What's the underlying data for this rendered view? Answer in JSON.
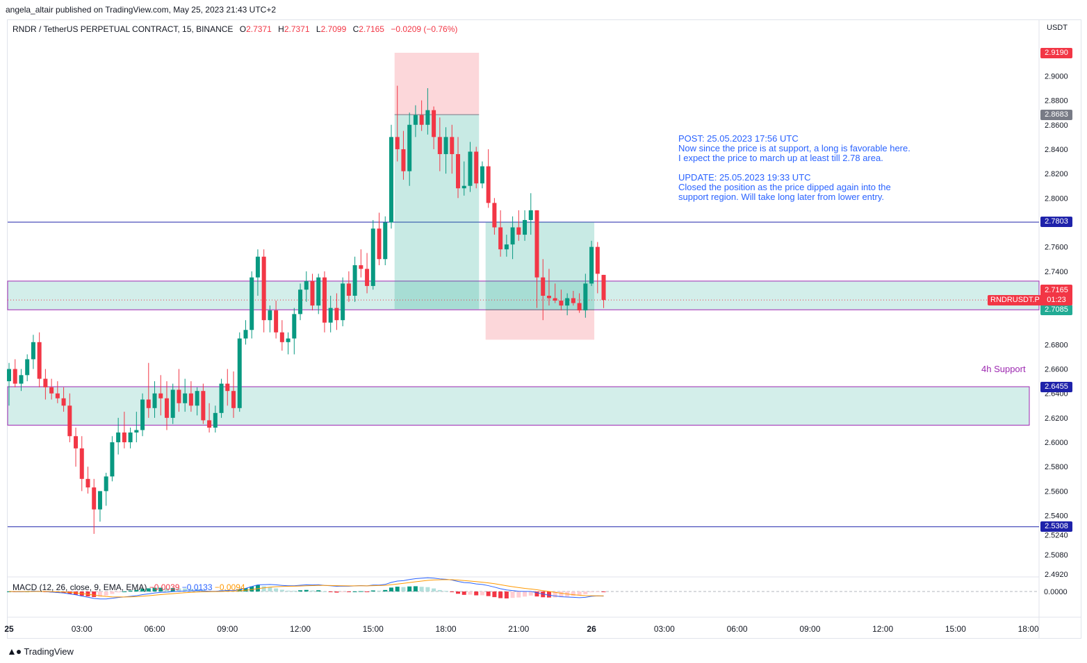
{
  "header": {
    "text": "angela_altair published on TradingView.com, May 25, 2023 21:43 UTC+2"
  },
  "legend": {
    "symbol": "RNDR / TetherUS PERPETUAL CONTRACT, 15, BINANCE",
    "o_label": "O",
    "o": "2.7371",
    "h_label": "H",
    "h": "2.7371",
    "l_label": "L",
    "l": "2.7099",
    "c_label": "C",
    "c": "2.7165",
    "change": "−0.0209 (−0.76%)"
  },
  "macd_legend": {
    "label": "MACD (12, 26, close, 9, EMA, EMA)",
    "hist": "−0.0039",
    "macd": "−0.0133",
    "signal": "−0.0094"
  },
  "currency": "USDT",
  "notes": {
    "text": "POST: 25.05.2023 17:56 UTC\nNow since the price is at support, a long is favorable here.\nI expect the price to march up at least till 2.78 area.\n\nUPDATE: 25.05.2023 19:33 UTC\nClosed the position as the price dipped again into the\nsupport region. Will take long later from lower entry."
  },
  "support_label": "4h Support",
  "symbol_tag": "RNDRUSDT.P",
  "current_price": "2.7165",
  "countdown": "01:23",
  "price_tags": [
    {
      "value": 2.919,
      "label": "2.9190",
      "color": "#f23645"
    },
    {
      "value": 2.8683,
      "label": "2.8683",
      "color": "#787b86"
    },
    {
      "value": 2.7803,
      "label": "2.7803",
      "color": "#1e22aa"
    },
    {
      "value": 2.7085,
      "label": "2.7085",
      "color": "#22ab94"
    },
    {
      "value": 2.6455,
      "label": "2.6455",
      "color": "#1e22aa"
    },
    {
      "value": 2.5308,
      "label": "2.5308",
      "color": "#1e22aa"
    }
  ],
  "footer": {
    "brand": "TradingView"
  },
  "chart_data": {
    "type": "candlestick",
    "ylim": [
      2.492,
      2.919
    ],
    "y_ticks": [
      "2.9000",
      "2.8800",
      "2.8600",
      "2.8400",
      "2.8200",
      "2.8000",
      "2.7600",
      "2.7400",
      "2.7200",
      "2.6800",
      "2.6600",
      "2.6400",
      "2.6200",
      "2.6000",
      "2.5800",
      "2.5600",
      "2.5400",
      "2.5240",
      "2.5080",
      "2.4920"
    ],
    "y_tick_values": [
      2.9,
      2.88,
      2.86,
      2.84,
      2.82,
      2.8,
      2.76,
      2.74,
      2.72,
      2.68,
      2.66,
      2.64,
      2.62,
      2.6,
      2.58,
      2.56,
      2.54,
      2.524,
      2.508,
      2.492
    ],
    "x_ticks": [
      "25",
      "03:00",
      "06:00",
      "09:00",
      "12:00",
      "15:00",
      "18:00",
      "21:00",
      "26",
      "03:00",
      "06:00",
      "09:00",
      "12:00",
      "15:00",
      "18:00"
    ],
    "x_tick_index": [
      0,
      12,
      24,
      36,
      48,
      60,
      72,
      84,
      96,
      108,
      120,
      132,
      144,
      156,
      168
    ],
    "horizontal_lines": [
      2.7803,
      2.5308
    ],
    "zones": [
      {
        "from": 2.7085,
        "to": 2.732
      },
      {
        "from": 2.614,
        "to": 2.6455
      }
    ],
    "positions": [
      {
        "type": "short",
        "start_index": 64,
        "end_index": 77,
        "entry": 2.8683,
        "stop": 2.919,
        "target": 2.709
      },
      {
        "type": "long",
        "start_index": 79,
        "end_index": 96,
        "entry": 2.7085,
        "stop": 2.684,
        "target": 2.7803
      }
    ],
    "candles": [
      [
        2.65,
        2.665,
        2.63,
        2.66
      ],
      [
        2.66,
        2.668,
        2.645,
        2.648
      ],
      [
        2.648,
        2.66,
        2.642,
        2.655
      ],
      [
        2.655,
        2.672,
        2.65,
        2.668
      ],
      [
        2.668,
        2.688,
        2.66,
        2.682
      ],
      [
        2.682,
        2.69,
        2.645,
        2.652
      ],
      [
        2.652,
        2.66,
        2.635,
        2.645
      ],
      [
        2.645,
        2.652,
        2.635,
        2.64
      ],
      [
        2.64,
        2.65,
        2.632,
        2.636
      ],
      [
        2.636,
        2.645,
        2.625,
        2.63
      ],
      [
        2.63,
        2.64,
        2.6,
        2.605
      ],
      [
        2.605,
        2.612,
        2.58,
        2.595
      ],
      [
        2.595,
        2.605,
        2.56,
        2.57
      ],
      [
        2.57,
        2.58,
        2.558,
        2.563
      ],
      [
        2.563,
        2.57,
        2.525,
        2.545
      ],
      [
        2.545,
        2.56,
        2.535,
        2.56
      ],
      [
        2.56,
        2.575,
        2.548,
        2.572
      ],
      [
        2.572,
        2.605,
        2.568,
        2.6
      ],
      [
        2.6,
        2.62,
        2.59,
        2.608
      ],
      [
        2.608,
        2.625,
        2.595,
        2.6
      ],
      [
        2.6,
        2.612,
        2.595,
        2.608
      ],
      [
        2.608,
        2.625,
        2.6,
        2.61
      ],
      [
        2.61,
        2.64,
        2.605,
        2.635
      ],
      [
        2.635,
        2.665,
        2.62,
        2.628
      ],
      [
        2.628,
        2.65,
        2.62,
        2.64
      ],
      [
        2.64,
        2.655,
        2.622,
        2.636
      ],
      [
        2.636,
        2.65,
        2.61,
        2.62
      ],
      [
        2.62,
        2.648,
        2.615,
        2.643
      ],
      [
        2.643,
        2.66,
        2.625,
        2.632
      ],
      [
        2.632,
        2.652,
        2.625,
        2.64
      ],
      [
        2.64,
        2.65,
        2.625,
        2.63
      ],
      [
        2.63,
        2.645,
        2.622,
        2.642
      ],
      [
        2.642,
        2.648,
        2.615,
        2.618
      ],
      [
        2.618,
        2.632,
        2.608,
        2.612
      ],
      [
        2.612,
        2.63,
        2.608,
        2.624
      ],
      [
        2.624,
        2.652,
        2.62,
        2.648
      ],
      [
        2.648,
        2.66,
        2.63,
        2.642
      ],
      [
        2.642,
        2.658,
        2.62,
        2.628
      ],
      [
        2.628,
        2.69,
        2.625,
        2.685
      ],
      [
        2.685,
        2.7,
        2.68,
        2.692
      ],
      [
        2.692,
        2.74,
        2.685,
        2.735
      ],
      [
        2.735,
        2.758,
        2.72,
        2.752
      ],
      [
        2.752,
        2.758,
        2.69,
        2.7
      ],
      [
        2.7,
        2.712,
        2.69,
        2.708
      ],
      [
        2.708,
        2.716,
        2.685,
        2.69
      ],
      [
        2.69,
        2.7,
        2.675,
        2.682
      ],
      [
        2.682,
        2.69,
        2.672,
        2.685
      ],
      [
        2.685,
        2.71,
        2.672,
        2.705
      ],
      [
        2.705,
        2.73,
        2.7,
        2.725
      ],
      [
        2.725,
        2.74,
        2.715,
        2.732
      ],
      [
        2.732,
        2.738,
        2.708,
        2.712
      ],
      [
        2.712,
        2.738,
        2.705,
        2.735
      ],
      [
        2.735,
        2.74,
        2.69,
        2.698
      ],
      [
        2.698,
        2.72,
        2.69,
        2.71
      ],
      [
        2.71,
        2.722,
        2.692,
        2.7
      ],
      [
        2.7,
        2.735,
        2.695,
        2.73
      ],
      [
        2.73,
        2.74,
        2.715,
        2.72
      ],
      [
        2.72,
        2.752,
        2.715,
        2.745
      ],
      [
        2.745,
        2.758,
        2.735,
        2.742
      ],
      [
        2.742,
        2.755,
        2.722,
        2.728
      ],
      [
        2.728,
        2.782,
        2.725,
        2.775
      ],
      [
        2.775,
        2.788,
        2.745,
        2.75
      ],
      [
        2.75,
        2.785,
        2.745,
        2.78
      ],
      [
        2.78,
        2.86,
        2.775,
        2.85
      ],
      [
        2.85,
        2.892,
        2.83,
        2.84
      ],
      [
        2.84,
        2.855,
        2.815,
        2.822
      ],
      [
        2.822,
        2.87,
        2.81,
        2.86
      ],
      [
        2.86,
        2.876,
        2.85,
        2.868
      ],
      [
        2.868,
        2.88,
        2.855,
        2.86
      ],
      [
        2.86,
        2.89,
        2.852,
        2.872
      ],
      [
        2.872,
        2.875,
        2.84,
        2.85
      ],
      [
        2.85,
        2.866,
        2.822,
        2.836
      ],
      [
        2.836,
        2.858,
        2.82,
        2.85
      ],
      [
        2.85,
        2.86,
        2.82,
        2.836
      ],
      [
        2.836,
        2.85,
        2.8,
        2.808
      ],
      [
        2.808,
        2.83,
        2.802,
        2.81
      ],
      [
        2.81,
        2.846,
        2.805,
        2.838
      ],
      [
        2.838,
        2.842,
        2.808,
        2.812
      ],
      [
        2.812,
        2.83,
        2.808,
        2.826
      ],
      [
        2.826,
        2.84,
        2.792,
        2.796
      ],
      [
        2.796,
        2.8,
        2.77,
        2.776
      ],
      [
        2.776,
        2.79,
        2.752,
        2.758
      ],
      [
        2.758,
        2.77,
        2.752,
        2.762
      ],
      [
        2.762,
        2.785,
        2.75,
        2.776
      ],
      [
        2.776,
        2.79,
        2.765,
        2.77
      ],
      [
        2.77,
        2.79,
        2.765,
        2.782
      ],
      [
        2.782,
        2.804,
        2.77,
        2.79
      ],
      [
        2.79,
        2.79,
        2.71,
        2.735
      ],
      [
        2.735,
        2.75,
        2.7,
        2.72
      ],
      [
        2.72,
        2.742,
        2.712,
        2.718
      ],
      [
        2.718,
        2.73,
        2.714,
        2.716
      ],
      [
        2.716,
        2.725,
        2.708,
        2.712
      ],
      [
        2.712,
        2.722,
        2.704,
        2.718
      ],
      [
        2.718,
        2.724,
        2.712,
        2.714
      ],
      [
        2.714,
        2.722,
        2.706,
        2.708
      ],
      [
        2.708,
        2.738,
        2.702,
        2.73
      ],
      [
        2.73,
        2.765,
        2.728,
        2.76
      ],
      [
        2.76,
        2.764,
        2.722,
        2.738
      ],
      [
        2.7371,
        2.7371,
        2.7099,
        2.7165
      ]
    ]
  }
}
